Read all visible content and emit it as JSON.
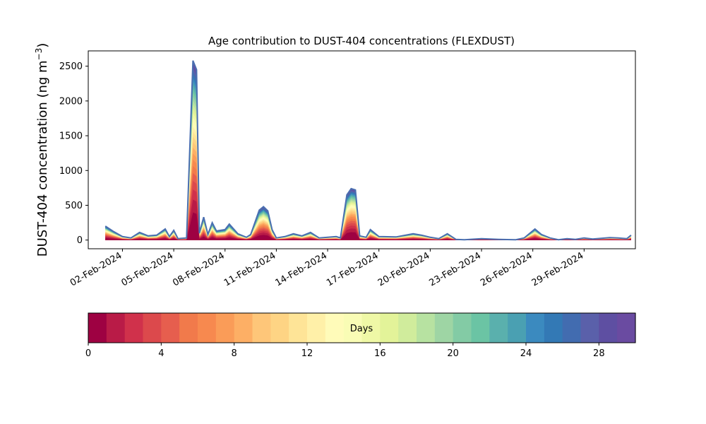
{
  "chart_data": {
    "type": "area",
    "stacked": true,
    "title": "Age contribution to DUST-404 concentrations (FLEXDUST)",
    "ylabel": "DUST-404 concentration (ng m⁻³)",
    "ylabel_main": "DUST-404 concentration (ng m",
    "ylabel_sup": "−3",
    "ylabel_close": ")",
    "xlabel": "",
    "xlim": [
      "2024-01-31",
      "2024-03-03"
    ],
    "ylim": [
      -125,
      2720
    ],
    "y_ticks": [
      0,
      500,
      1000,
      1500,
      2000,
      2500
    ],
    "x_ticks": [
      "2024-02-02",
      "2024-02-05",
      "2024-02-08",
      "2024-02-11",
      "2024-02-14",
      "2024-02-17",
      "2024-02-20",
      "2024-02-23",
      "2024-02-26",
      "2024-02-29"
    ],
    "x_tick_labels": [
      "02-Feb-2024",
      "05-Feb-2024",
      "08-Feb-2024",
      "11-Feb-2024",
      "14-Feb-2024",
      "17-Feb-2024",
      "20-Feb-2024",
      "23-Feb-2024",
      "26-Feb-2024",
      "29-Feb-2024"
    ],
    "total_series": {
      "name": "total",
      "color": "#4a6fb0",
      "points": [
        [
          "2024-02-01",
          200
        ],
        [
          "2024-02-01 12:00",
          120
        ],
        [
          "2024-02-02 00:00",
          50
        ],
        [
          "2024-02-02 12:00",
          30
        ],
        [
          "2024-02-03 00:00",
          110
        ],
        [
          "2024-02-03 12:00",
          60
        ],
        [
          "2024-02-04 00:00",
          70
        ],
        [
          "2024-02-04 12:00",
          160
        ],
        [
          "2024-02-04 18:00",
          50
        ],
        [
          "2024-02-05 00:00",
          140
        ],
        [
          "2024-02-05 06:00",
          20
        ],
        [
          "2024-02-05 18:00",
          30
        ],
        [
          "2024-02-06 03:00",
          2580
        ],
        [
          "2024-02-06 08:00",
          2450
        ],
        [
          "2024-02-06 12:00",
          100
        ],
        [
          "2024-02-06 18:00",
          330
        ],
        [
          "2024-02-07 00:00",
          80
        ],
        [
          "2024-02-07 06:00",
          250
        ],
        [
          "2024-02-07 12:00",
          130
        ],
        [
          "2024-02-08 00:00",
          150
        ],
        [
          "2024-02-08 06:00",
          230
        ],
        [
          "2024-02-08 18:00",
          90
        ],
        [
          "2024-02-09 06:00",
          40
        ],
        [
          "2024-02-09 12:00",
          80
        ],
        [
          "2024-02-10 00:00",
          430
        ],
        [
          "2024-02-10 06:00",
          480
        ],
        [
          "2024-02-10 12:00",
          420
        ],
        [
          "2024-02-10 18:00",
          150
        ],
        [
          "2024-02-11 00:00",
          30
        ],
        [
          "2024-02-11 12:00",
          50
        ],
        [
          "2024-02-12 00:00",
          90
        ],
        [
          "2024-02-12 12:00",
          60
        ],
        [
          "2024-02-13 00:00",
          110
        ],
        [
          "2024-02-13 12:00",
          30
        ],
        [
          "2024-02-14 12:00",
          50
        ],
        [
          "2024-02-14 18:00",
          30
        ],
        [
          "2024-02-15 03:00",
          650
        ],
        [
          "2024-02-15 09:00",
          740
        ],
        [
          "2024-02-15 15:00",
          720
        ],
        [
          "2024-02-15 21:00",
          60
        ],
        [
          "2024-02-16 06:00",
          40
        ],
        [
          "2024-02-16 12:00",
          150
        ],
        [
          "2024-02-17 00:00",
          50
        ],
        [
          "2024-02-18 00:00",
          45
        ],
        [
          "2024-02-19 00:00",
          90
        ],
        [
          "2024-02-19 12:00",
          70
        ],
        [
          "2024-02-20 00:00",
          40
        ],
        [
          "2024-02-20 12:00",
          20
        ],
        [
          "2024-02-21 00:00",
          90
        ],
        [
          "2024-02-21 12:00",
          10
        ],
        [
          "2024-02-22 00:00",
          5
        ],
        [
          "2024-02-23 00:00",
          20
        ],
        [
          "2024-02-24 00:00",
          10
        ],
        [
          "2024-02-25 00:00",
          5
        ],
        [
          "2024-02-25 12:00",
          30
        ],
        [
          "2024-02-26 03:00",
          160
        ],
        [
          "2024-02-26 12:00",
          80
        ],
        [
          "2024-02-27 00:00",
          30
        ],
        [
          "2024-02-27 12:00",
          5
        ],
        [
          "2024-02-28 00:00",
          20
        ],
        [
          "2024-02-28 12:00",
          10
        ],
        [
          "2024-02-29 00:00",
          30
        ],
        [
          "2024-02-29 12:00",
          15
        ],
        [
          "2024-03-01 00:00",
          25
        ],
        [
          "2024-03-01 12:00",
          35
        ],
        [
          "2024-03-02 00:00",
          30
        ],
        [
          "2024-03-02 12:00",
          20
        ],
        [
          "2024-03-02 18:00",
          70
        ]
      ]
    },
    "colorbar": {
      "label": "Days",
      "min": 0,
      "max": 30,
      "ticks": [
        0,
        4,
        8,
        12,
        16,
        20,
        24,
        28
      ],
      "colors": [
        "#9e0142",
        "#b91b47",
        "#d0314b",
        "#dc494c",
        "#e65e4e",
        "#f17a4b",
        "#f7894f",
        "#fa9c58",
        "#fdaf65",
        "#fec679",
        "#fed484",
        "#fee497",
        "#fff0a8",
        "#fffbb9",
        "#f9fcb5",
        "#eff8a6",
        "#e3f399",
        "#d0ec9c",
        "#b7e2a1",
        "#9ed5a4",
        "#83cba5",
        "#6bc4a4",
        "#5ab0ad",
        "#4aa0b2",
        "#3b8abf",
        "#3379b5",
        "#426cb0",
        "#5a60aa",
        "#5e4fa2",
        "#6a4ba1"
      ]
    }
  }
}
